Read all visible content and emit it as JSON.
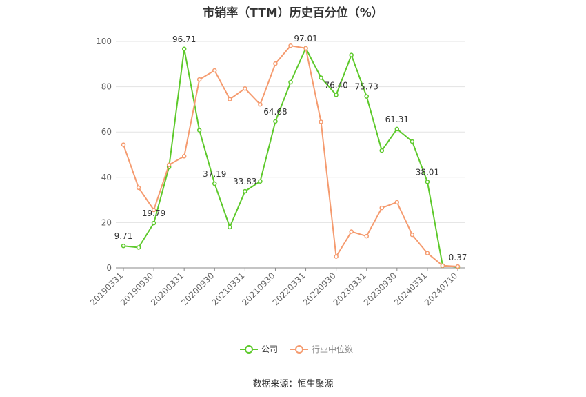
{
  "title": "市销率（TTM）历史百分位（%）",
  "source": "数据来源：恒生聚源",
  "legend": [
    {
      "label": "公司",
      "color": "#5dc92b"
    },
    {
      "label": "行业中位数",
      "color": "#f59b6f"
    }
  ],
  "chart_data": {
    "type": "line",
    "ylim": [
      0,
      100
    ],
    "yticks": [
      0,
      20,
      40,
      60,
      80,
      100
    ],
    "grid": true,
    "legend_position": "bottom",
    "x_tick_labels": [
      "20190331",
      "20190930",
      "20200331",
      "20200930",
      "20210331",
      "20210930",
      "20220331",
      "20220930",
      "20230331",
      "20230930",
      "20240331",
      "20240710"
    ],
    "x": [
      "20190331",
      "20190630",
      "20190930",
      "20191231",
      "20200331",
      "20200630",
      "20200930",
      "20201231",
      "20210331",
      "20210630",
      "20210930",
      "20211231",
      "20220331",
      "20220630",
      "20220930",
      "20221231",
      "20230331",
      "20230630",
      "20230930",
      "20231231",
      "20240331",
      "20240630",
      "20240710"
    ],
    "series": [
      {
        "name": "公司",
        "color": "#5dc92b",
        "values": [
          9.71,
          9.0,
          19.79,
          44.5,
          96.71,
          60.8,
          37.19,
          18.0,
          33.83,
          38.2,
          64.68,
          82.0,
          97.01,
          84.0,
          76.4,
          94.0,
          75.73,
          51.8,
          61.31,
          55.8,
          38.01,
          1.0,
          0.37
        ],
        "labels": {
          "0": "9.71",
          "2": "19.79",
          "4": "96.71",
          "6": "37.19",
          "8": "33.83",
          "10": "64.68",
          "12": "97.01",
          "14": "76.40",
          "16": "75.73",
          "18": "61.31",
          "20": "38.01",
          "22": "0.37"
        }
      },
      {
        "name": "行业中位数",
        "color": "#f59b6f",
        "values": [
          54.4,
          35.4,
          25.6,
          45.5,
          49.3,
          83.2,
          87.2,
          74.5,
          79.2,
          72.2,
          90.2,
          98.1,
          97.0,
          64.5,
          5.0,
          16.0,
          14.0,
          26.5,
          29.0,
          14.6,
          6.5,
          1.0,
          0.6
        ]
      }
    ]
  }
}
